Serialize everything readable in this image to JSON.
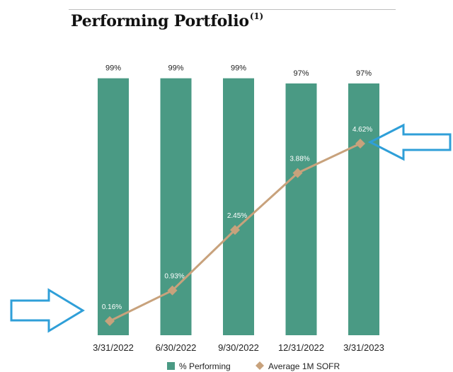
{
  "header": {
    "title": "Performing Portfolio",
    "footnote_marker": "(1)"
  },
  "chart_data": {
    "type": "bar",
    "title": "Performing Portfolio",
    "categories": [
      "3/31/2022",
      "6/30/2022",
      "9/30/2022",
      "12/31/2022",
      "3/31/2023"
    ],
    "series": [
      {
        "name": "% Performing",
        "type": "bar",
        "values": [
          99,
          99,
          99,
          97,
          97
        ],
        "labels": [
          "99%",
          "99%",
          "99%",
          "97%",
          "97%"
        ],
        "color": "#4a9a84"
      },
      {
        "name": "Average 1M SOFR",
        "type": "line",
        "marker": "diamond",
        "values": [
          0.16,
          0.93,
          2.45,
          3.88,
          4.62
        ],
        "labels": [
          "0.16%",
          "0.93%",
          "2.45%",
          "3.88%",
          "4.62%"
        ],
        "color": "#c8a27c"
      }
    ],
    "legend": [
      "% Performing",
      "Average 1M SOFR"
    ],
    "legend_position": "bottom",
    "grid": false,
    "annotations": [
      "arrow-icon",
      "arrow-icon"
    ],
    "arrow_color": "#2f9fd8"
  }
}
